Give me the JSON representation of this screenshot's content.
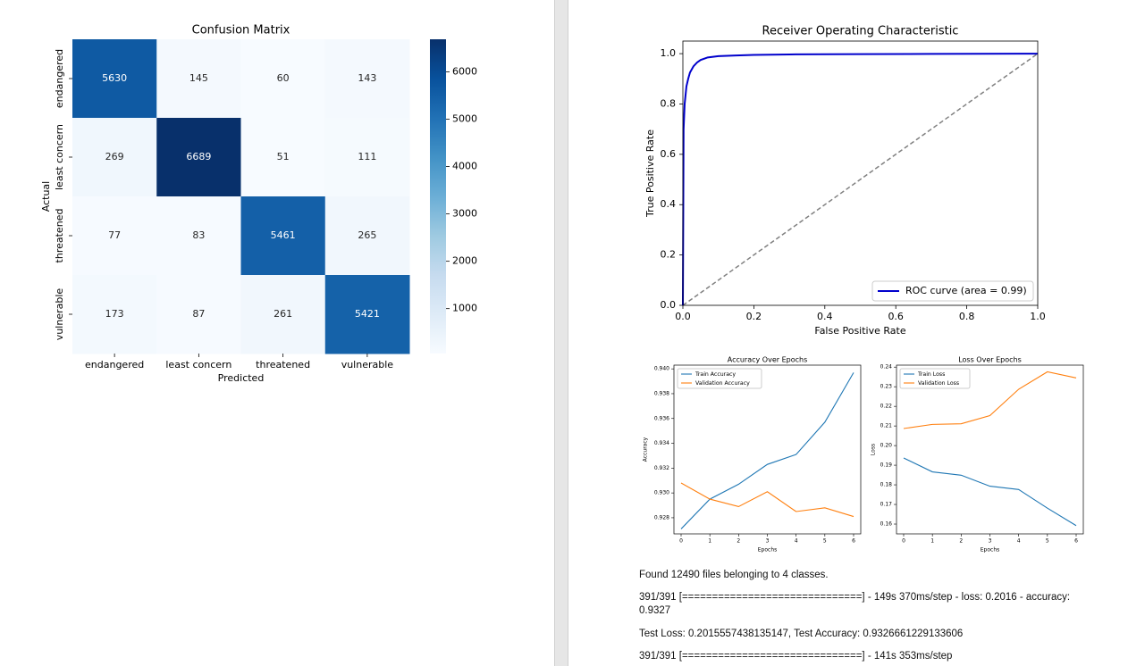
{
  "colors": {
    "heat_low": "#f7fbff",
    "heat_high": "#08306b",
    "roc_line": "#0000cc",
    "diag_line": "#808080",
    "train": "#1f77b4",
    "val": "#ff7f0e"
  },
  "chart_data": [
    {
      "type": "heatmap",
      "title": "Confusion Matrix",
      "xlabel": "Predicted",
      "ylabel": "Actual",
      "row_labels": [
        "endangered",
        "least concern",
        "threatened",
        "vulnerable"
      ],
      "col_labels": [
        "endangered",
        "least concern",
        "threatened",
        "vulnerable"
      ],
      "values": [
        [
          5630,
          145,
          60,
          143
        ],
        [
          269,
          6689,
          51,
          111
        ],
        [
          77,
          83,
          5461,
          265
        ],
        [
          173,
          87,
          261,
          5421
        ]
      ],
      "colorbar_ticks": [
        "1000",
        "2000",
        "3000",
        "4000",
        "5000",
        "6000"
      ],
      "colorbar_range": [
        51,
        6689
      ]
    },
    {
      "type": "line",
      "title": "Receiver Operating Characteristic",
      "xlabel": "False Positive Rate",
      "ylabel": "True Positive Rate",
      "xlim": [
        0,
        1
      ],
      "ylim": [
        0,
        1.05
      ],
      "xticks": [
        "0.0",
        "0.2",
        "0.4",
        "0.6",
        "0.8",
        "1.0"
      ],
      "yticks": [
        "0.0",
        "0.2",
        "0.4",
        "0.6",
        "0.8",
        "1.0"
      ],
      "legend": "ROC curve (area = 0.99)",
      "legend_position": "lower right",
      "series": [
        {
          "name": "ROC curve (area = 0.99)",
          "x": [
            0,
            0.002,
            0.005,
            0.01,
            0.015,
            0.02,
            0.03,
            0.04,
            0.05,
            0.07,
            0.1,
            0.15,
            0.2,
            0.3,
            0.5,
            0.7,
            1.0
          ],
          "y": [
            0,
            0.7,
            0.8,
            0.87,
            0.9,
            0.925,
            0.95,
            0.965,
            0.975,
            0.985,
            0.99,
            0.993,
            0.995,
            0.997,
            0.998,
            0.999,
            1.0
          ]
        },
        {
          "x": [
            0,
            1
          ],
          "y": [
            0,
            1
          ]
        }
      ]
    },
    {
      "type": "line",
      "title": "Accuracy Over Epochs",
      "xlabel": "Epochs",
      "ylabel": "Accuracy",
      "x": [
        0,
        1,
        2,
        3,
        4,
        5,
        6
      ],
      "xticks": [
        "0",
        "1",
        "2",
        "3",
        "4",
        "5",
        "6"
      ],
      "yticks": [
        "0.928",
        "0.930",
        "0.932",
        "0.934",
        "0.936",
        "0.938",
        "0.940"
      ],
      "ylim": [
        0.9267,
        0.9403
      ],
      "legend_position": "upper left",
      "series": [
        {
          "name": "Train Accuracy",
          "values": [
            0.9271,
            0.9295,
            0.9307,
            0.9323,
            0.9331,
            0.9357,
            0.9397
          ]
        },
        {
          "name": "Validation Accuracy",
          "values": [
            0.9308,
            0.9295,
            0.9289,
            0.9301,
            0.9285,
            0.9288,
            0.9281
          ]
        }
      ]
    },
    {
      "type": "line",
      "title": "Loss Over Epochs",
      "xlabel": "Epochs",
      "ylabel": "Loss",
      "x": [
        0,
        1,
        2,
        3,
        4,
        5,
        6
      ],
      "xticks": [
        "0",
        "1",
        "2",
        "3",
        "4",
        "5",
        "6"
      ],
      "yticks": [
        "0.16",
        "0.17",
        "0.18",
        "0.19",
        "0.20",
        "0.21",
        "0.22",
        "0.23",
        "0.24"
      ],
      "ylim": [
        0.155,
        0.241
      ],
      "legend_position": "upper left",
      "series": [
        {
          "name": "Train Loss",
          "values": [
            0.1937,
            0.1866,
            0.1849,
            0.1793,
            0.1776,
            0.1681,
            0.1592
          ]
        },
        {
          "name": "Validation Loss",
          "values": [
            0.2087,
            0.2108,
            0.2111,
            0.2153,
            0.2287,
            0.2376,
            0.2345
          ]
        }
      ]
    }
  ],
  "log_lines": [
    "Found 12490 files belonging to 4 classes.",
    "391/391 [==============================] - 149s 370ms/step - loss: 0.2016 - accuracy: 0.9327",
    "Test Loss: 0.2015557438135147, Test Accuracy: 0.9326661229133606",
    "391/391 [==============================] - 141s 353ms/step"
  ]
}
